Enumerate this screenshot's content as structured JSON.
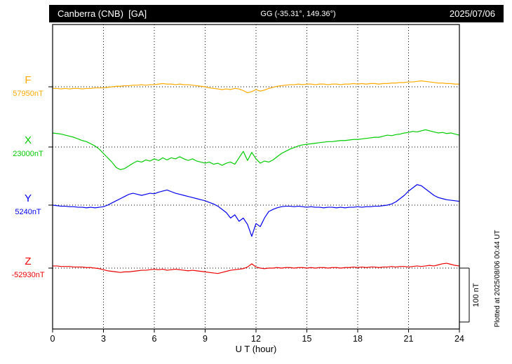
{
  "header": {
    "station": "Canberra (CNB)  [GA]",
    "coords": "GG (-35.31°, 149.36°)",
    "date": "2025/07/06"
  },
  "footer": {
    "plotted_at": "Plotted at 2025/08/06 00:44 UT"
  },
  "chart_data": {
    "type": "line",
    "title": "Canberra (CNB) [GA] magnetogram 2025/07/06",
    "xlabel": "U T (hour)",
    "ylabel": "",
    "xlim": [
      0,
      24
    ],
    "x_ticks": [
      0,
      3,
      6,
      9,
      12,
      15,
      18,
      21,
      24
    ],
    "grid": "dotted vertical at 3h intervals, dotted horizontal baseline per trace",
    "legend_position": "left",
    "dt_hours": 0.25,
    "values_are": "offset in nT from each series baseline",
    "scale_bar": {
      "label": "100 nT",
      "nT": 100
    },
    "series": [
      {
        "name": "F",
        "color": "#FFAA00",
        "base_label": "57950nT",
        "baseline_nT": 57950,
        "values": [
          -3,
          -3,
          -4,
          -3,
          -4,
          -3,
          -3,
          -4,
          -3,
          -3,
          -2,
          -2,
          -2,
          -1,
          0,
          1,
          1,
          2,
          2,
          3,
          3,
          4,
          3,
          4,
          4,
          5,
          6,
          5,
          5,
          4,
          5,
          4,
          4,
          3,
          2,
          1,
          0,
          -2,
          -3,
          -4,
          -5,
          -4,
          -5,
          -3,
          -4,
          -7,
          -11,
          -9,
          -5,
          -8,
          -6,
          -3,
          -1,
          1,
          2,
          3,
          4,
          4,
          5,
          4,
          5,
          5,
          4,
          5,
          5,
          4,
          5,
          5,
          4,
          5,
          5,
          6,
          5,
          6,
          5,
          6,
          6,
          5,
          6,
          6,
          7,
          7,
          8,
          8,
          9,
          9,
          10,
          11,
          10,
          9,
          8,
          7,
          7,
          6,
          6,
          5,
          5
        ]
      },
      {
        "name": "X",
        "color": "#00CC00",
        "base_label": "23000nT",
        "baseline_nT": 23000,
        "values": [
          26,
          25,
          24,
          22,
          20,
          18,
          15,
          12,
          10,
          6,
          2,
          -4,
          -12,
          -20,
          -28,
          -38,
          -42,
          -40,
          -35,
          -30,
          -26,
          -28,
          -24,
          -26,
          -22,
          -25,
          -20,
          -24,
          -20,
          -22,
          -18,
          -22,
          -25,
          -22,
          -26,
          -28,
          -30,
          -28,
          -32,
          -30,
          -34,
          -30,
          -28,
          -32,
          -20,
          -8,
          -25,
          -10,
          -22,
          -30,
          -26,
          -28,
          -24,
          -18,
          -12,
          -8,
          -4,
          -1,
          2,
          4,
          5,
          6,
          7,
          8,
          9,
          10,
          10,
          11,
          12,
          12,
          13,
          14,
          14,
          15,
          16,
          17,
          18,
          18,
          20,
          22,
          21,
          23,
          24,
          26,
          27,
          29,
          28,
          30,
          32,
          30,
          28,
          26,
          27,
          25,
          26,
          24,
          22
        ]
      },
      {
        "name": "Y",
        "color": "#0000EE",
        "base_label": "5240nT",
        "baseline_nT": 5240,
        "values": [
          0,
          -1,
          -2,
          -2,
          -3,
          -3,
          -4,
          -4,
          -5,
          -4,
          -5,
          -4,
          -3,
          0,
          4,
          8,
          12,
          16,
          20,
          22,
          20,
          18,
          20,
          22,
          21,
          24,
          26,
          28,
          25,
          22,
          20,
          18,
          16,
          14,
          12,
          10,
          8,
          5,
          2,
          -2,
          -8,
          -14,
          -24,
          -18,
          -30,
          -24,
          -36,
          -58,
          -34,
          -40,
          -24,
          -12,
          -8,
          -5,
          -3,
          -2,
          -2,
          -3,
          -2,
          -3,
          -4,
          -3,
          -4,
          -4,
          -5,
          -4,
          -4,
          -5,
          -4,
          -5,
          -4,
          -4,
          -3,
          -4,
          -3,
          -3,
          -2,
          -2,
          -1,
          0,
          2,
          6,
          12,
          18,
          26,
          32,
          38,
          36,
          30,
          24,
          18,
          14,
          12,
          10,
          9,
          8,
          7
        ]
      },
      {
        "name": "Z",
        "color": "#EE0000",
        "base_label": "-52930nT",
        "baseline_nT": -52930,
        "values": [
          4,
          4,
          3,
          3,
          3,
          2,
          2,
          2,
          1,
          1,
          0,
          -1,
          -3,
          -5,
          -6,
          -7,
          -8,
          -7,
          -7,
          -6,
          -5,
          -4,
          -4,
          -3,
          -2,
          -3,
          -2,
          -4,
          -3,
          -2,
          -3,
          -4,
          -5,
          -4,
          -5,
          -6,
          -7,
          -8,
          -9,
          -10,
          -8,
          -6,
          -4,
          -3,
          -2,
          -1,
          2,
          8,
          2,
          0,
          -1,
          0,
          0,
          1,
          0,
          1,
          1,
          0,
          1,
          1,
          0,
          1,
          0,
          1,
          1,
          0,
          1,
          1,
          0,
          1,
          1,
          2,
          1,
          2,
          1,
          2,
          2,
          1,
          2,
          2,
          3,
          2,
          3,
          3,
          2,
          3,
          4,
          3,
          4,
          5,
          4,
          6,
          8,
          9,
          7,
          5,
          4
        ]
      }
    ]
  }
}
